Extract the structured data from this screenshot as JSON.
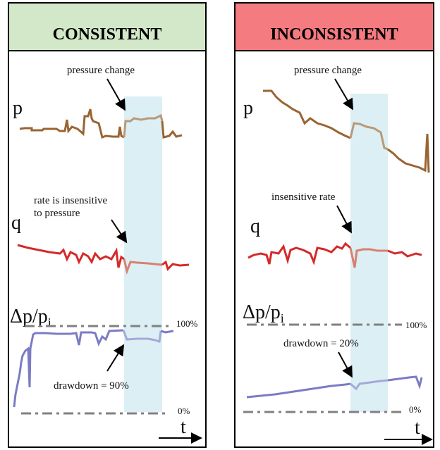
{
  "colors": {
    "consistent_header": "#d3e8c8",
    "inconsistent_header": "#f47b80",
    "highlight_band": "#dceff4",
    "pressure": "#9a6432",
    "pressure_highlight": "#b89a78",
    "rate": "#d42a2a",
    "rate_highlight": "#d88070",
    "drawdown": "#7b7cc4",
    "drawdown_highlight": "#a6a8d8",
    "reference_line": "#808080"
  },
  "consistent": {
    "title": "CONSISTENT",
    "pressure_annotation": "pressure change",
    "p_label": "p",
    "q_label": "q",
    "rate_annotation_line1": "rate is insensitive",
    "rate_annotation_line2": "to pressure",
    "drawdown_label": "Δp/p",
    "drawdown_label_sub": "i",
    "max_label": "100%",
    "min_label": "0%",
    "drawdown_annotation": "drawdown = 90%",
    "drawdown_percent": 90,
    "time_label": "t"
  },
  "inconsistent": {
    "title": "INCONSISTENT",
    "pressure_annotation": "pressure change",
    "p_label": "p",
    "q_label": "q",
    "rate_annotation": "insensitive rate",
    "drawdown_label": "Δp/p",
    "drawdown_label_sub": "i",
    "max_label": "100%",
    "min_label": "0%",
    "drawdown_annotation": "drawdown = 20%",
    "drawdown_percent": 20,
    "time_label": "t"
  }
}
